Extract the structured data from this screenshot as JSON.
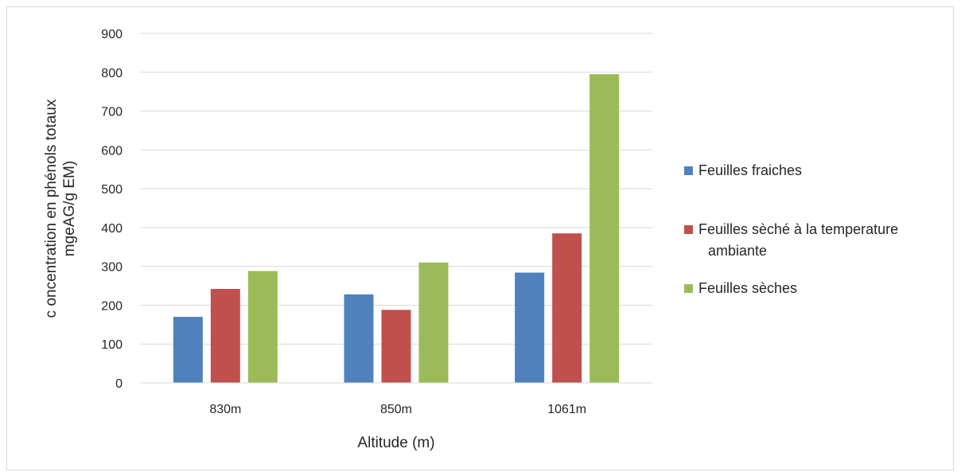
{
  "chart_data": {
    "type": "bar",
    "categories": [
      "830m",
      "850m",
      "1061m"
    ],
    "series": [
      {
        "name": "Feuilles fraiches",
        "color": "#4f81bd",
        "values": [
          170,
          228,
          284
        ]
      },
      {
        "name": "Feuilles sèché à la  temperature ambiante",
        "name_lines": [
          "Feuilles sèché à la  temperature",
          "ambiante"
        ],
        "color": "#c0504d",
        "values": [
          242,
          188,
          385
        ]
      },
      {
        "name": "Feuilles sèches",
        "color": "#9bbb59",
        "values": [
          288,
          310,
          795
        ]
      }
    ],
    "xlabel": "Altitude (m)",
    "ylabel_lines": [
      "c oncentration en phénols totaux",
      "mgeAG/g EM)"
    ],
    "ylim": [
      0,
      900
    ],
    "yticks": [
      0,
      100,
      200,
      300,
      400,
      500,
      600,
      700,
      800,
      900
    ],
    "grid": true,
    "legend_position": "right"
  }
}
